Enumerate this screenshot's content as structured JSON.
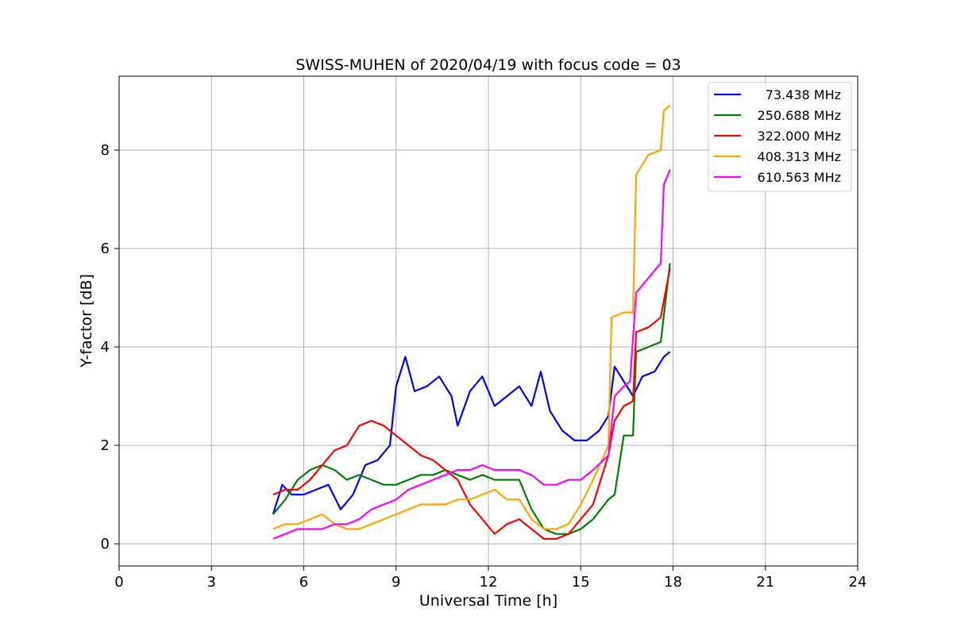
{
  "chart_data": {
    "type": "line",
    "title": "SWISS-MUHEN of 2020/04/19 with focus code = 03",
    "xlabel": "Universal Time [h]",
    "ylabel": "Y-factor [dB]",
    "xlim": [
      0,
      24
    ],
    "ylim": [
      -0.45,
      9.5
    ],
    "xticks": [
      0,
      3,
      6,
      9,
      12,
      15,
      18,
      21,
      24
    ],
    "yticks": [
      0,
      2,
      4,
      6,
      8
    ],
    "grid": true,
    "legend_position": "top-right",
    "series": [
      {
        "name": "73.438 MHz",
        "color": "#0000ff",
        "x": [
          5.0,
          5.3,
          5.6,
          6.0,
          6.4,
          6.8,
          7.2,
          7.6,
          8.0,
          8.4,
          8.8,
          9.0,
          9.3,
          9.6,
          10.0,
          10.4,
          10.8,
          11.0,
          11.4,
          11.8,
          12.2,
          12.6,
          13.0,
          13.4,
          13.7,
          14.0,
          14.4,
          14.8,
          15.2,
          15.6,
          15.9,
          16.1,
          16.4,
          16.7,
          17.0,
          17.4,
          17.7,
          17.9
        ],
        "y": [
          0.6,
          1.2,
          1.0,
          1.0,
          1.1,
          1.2,
          0.7,
          1.0,
          1.6,
          1.7,
          2.0,
          3.2,
          3.8,
          3.1,
          3.2,
          3.4,
          3.0,
          2.4,
          3.1,
          3.4,
          2.8,
          3.0,
          3.2,
          2.8,
          3.5,
          2.7,
          2.3,
          2.1,
          2.1,
          2.3,
          2.6,
          3.6,
          3.3,
          3.0,
          3.4,
          3.5,
          3.8,
          3.9
        ]
      },
      {
        "name": "250.688 MHz",
        "color": "#008000",
        "x": [
          5.0,
          5.4,
          5.8,
          6.2,
          6.6,
          7.0,
          7.4,
          7.8,
          8.2,
          8.6,
          9.0,
          9.4,
          9.8,
          10.2,
          10.6,
          11.0,
          11.4,
          11.8,
          12.2,
          12.6,
          13.0,
          13.4,
          13.8,
          14.2,
          14.6,
          15.0,
          15.4,
          15.9,
          16.1,
          16.4,
          16.7,
          16.8,
          17.2,
          17.6,
          17.9
        ],
        "y": [
          0.6,
          0.9,
          1.3,
          1.5,
          1.6,
          1.5,
          1.3,
          1.4,
          1.3,
          1.2,
          1.2,
          1.3,
          1.4,
          1.4,
          1.5,
          1.4,
          1.3,
          1.4,
          1.3,
          1.3,
          1.3,
          0.7,
          0.3,
          0.2,
          0.2,
          0.3,
          0.5,
          0.9,
          1.0,
          2.2,
          2.2,
          3.9,
          4.0,
          4.1,
          5.7
        ]
      },
      {
        "name": "322.000 MHz",
        "color": "#ff0000",
        "x": [
          5.0,
          5.4,
          5.8,
          6.2,
          6.6,
          7.0,
          7.4,
          7.8,
          8.2,
          8.6,
          9.0,
          9.4,
          9.8,
          10.2,
          10.6,
          11.0,
          11.4,
          11.8,
          12.2,
          12.6,
          13.0,
          13.4,
          13.8,
          14.2,
          14.6,
          15.0,
          15.4,
          15.9,
          16.1,
          16.4,
          16.7,
          16.8,
          17.2,
          17.6,
          17.9
        ],
        "y": [
          1.0,
          1.1,
          1.1,
          1.3,
          1.6,
          1.9,
          2.0,
          2.4,
          2.5,
          2.4,
          2.2,
          2.0,
          1.8,
          1.7,
          1.5,
          1.3,
          0.8,
          0.5,
          0.2,
          0.4,
          0.5,
          0.3,
          0.1,
          0.1,
          0.2,
          0.5,
          0.8,
          1.8,
          2.5,
          2.8,
          2.9,
          4.3,
          4.4,
          4.6,
          5.6
        ]
      },
      {
        "name": "408.313 MHz",
        "color": "#ffa500",
        "x": [
          5.0,
          5.4,
          5.8,
          6.2,
          6.6,
          7.0,
          7.4,
          7.8,
          8.2,
          8.6,
          9.0,
          9.4,
          9.8,
          10.2,
          10.6,
          11.0,
          11.4,
          11.8,
          12.2,
          12.6,
          13.0,
          13.4,
          13.8,
          14.2,
          14.6,
          15.0,
          15.4,
          15.9,
          16.0,
          16.4,
          16.7,
          16.8,
          17.2,
          17.6,
          17.7,
          17.9
        ],
        "y": [
          0.3,
          0.4,
          0.4,
          0.5,
          0.6,
          0.4,
          0.3,
          0.3,
          0.4,
          0.5,
          0.6,
          0.7,
          0.8,
          0.8,
          0.8,
          0.9,
          0.9,
          1.0,
          1.1,
          0.9,
          0.9,
          0.5,
          0.3,
          0.3,
          0.4,
          0.8,
          1.3,
          2.0,
          4.6,
          4.7,
          4.7,
          7.5,
          7.9,
          8.0,
          8.8,
          8.9
        ]
      },
      {
        "name": "610.563 MHz",
        "color": "#ff00ff",
        "x": [
          5.0,
          5.4,
          5.8,
          6.2,
          6.6,
          7.0,
          7.4,
          7.8,
          8.2,
          8.6,
          9.0,
          9.4,
          9.8,
          10.2,
          10.6,
          11.0,
          11.4,
          11.8,
          12.2,
          12.6,
          13.0,
          13.4,
          13.8,
          14.2,
          14.6,
          15.0,
          15.4,
          15.9,
          16.1,
          16.4,
          16.6,
          16.8,
          17.2,
          17.6,
          17.7,
          17.9
        ],
        "y": [
          0.1,
          0.2,
          0.3,
          0.3,
          0.3,
          0.4,
          0.4,
          0.5,
          0.7,
          0.8,
          0.9,
          1.1,
          1.2,
          1.3,
          1.4,
          1.5,
          1.5,
          1.6,
          1.5,
          1.5,
          1.5,
          1.4,
          1.2,
          1.2,
          1.3,
          1.3,
          1.5,
          1.8,
          3.0,
          3.2,
          3.3,
          5.1,
          5.4,
          5.7,
          7.3,
          7.6
        ]
      }
    ]
  }
}
